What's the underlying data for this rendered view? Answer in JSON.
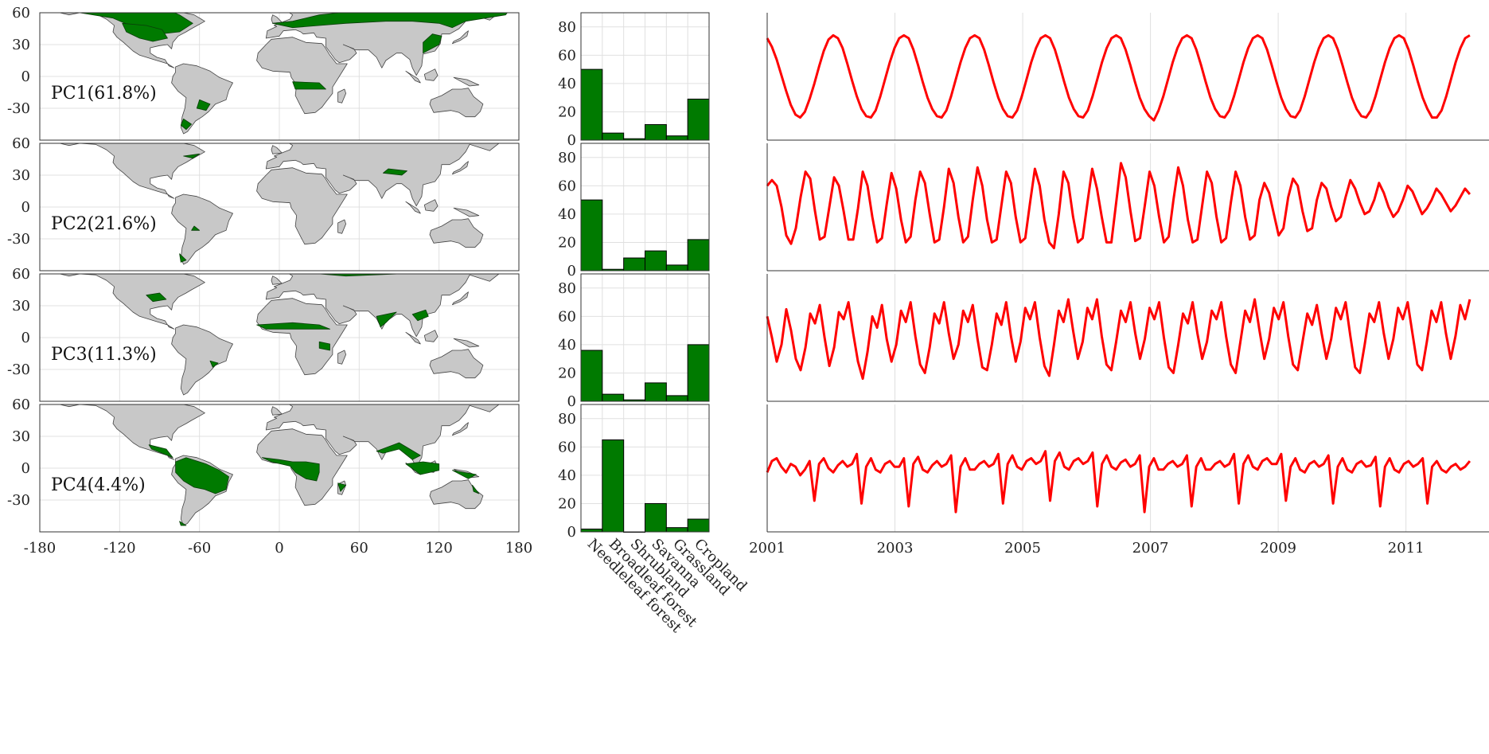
{
  "figure": {
    "map_panels": {
      "lon_ticks": [
        "-180",
        "-120",
        "-60",
        "0",
        "60",
        "120",
        "180"
      ],
      "lat_ticks": [
        "60",
        "30",
        "0",
        "-30"
      ],
      "xlim": [
        -180,
        180
      ],
      "ylim": [
        -60,
        60
      ],
      "land_color": "#c8c8c8",
      "highlight_color": "#007a00",
      "panels": [
        {
          "label": "PC1(61.8%)"
        },
        {
          "label": "PC2(21.6%)"
        },
        {
          "label": "PC3(11.3%)"
        },
        {
          "label": "PC4(4.4%)"
        }
      ]
    },
    "bar_x_tick_labels": [
      "Needleleaf forest",
      "Broadleaf forest",
      "Shrubland",
      "Savanna",
      "Grassland",
      "Cropland"
    ],
    "time_x_tick_labels": [
      "2001",
      "2003",
      "2005",
      "2007",
      "2009",
      "2011"
    ]
  },
  "chart_data": [
    {
      "type": "bar",
      "categories": [
        "Needleleaf forest",
        "Broadleaf forest",
        "Shrubland",
        "Savanna",
        "Grassland",
        "Cropland"
      ],
      "values": [
        50,
        5,
        1,
        11,
        3,
        29
      ],
      "ylim": [
        0,
        90
      ],
      "yticks": [
        0,
        20,
        40,
        60,
        80
      ],
      "color": "#007a00"
    },
    {
      "type": "bar",
      "categories": [
        "Needleleaf forest",
        "Broadleaf forest",
        "Shrubland",
        "Savanna",
        "Grassland",
        "Cropland"
      ],
      "values": [
        50,
        1,
        9,
        14,
        4,
        22
      ],
      "ylim": [
        0,
        90
      ],
      "yticks": [
        0,
        20,
        40,
        60,
        80
      ],
      "color": "#007a00"
    },
    {
      "type": "bar",
      "categories": [
        "Needleleaf forest",
        "Broadleaf forest",
        "Shrubland",
        "Savanna",
        "Grassland",
        "Cropland"
      ],
      "values": [
        36,
        5,
        1,
        13,
        4,
        40
      ],
      "ylim": [
        0,
        90
      ],
      "yticks": [
        0,
        20,
        40,
        60,
        80
      ],
      "color": "#007a00"
    },
    {
      "type": "bar",
      "categories": [
        "Needleleaf forest",
        "Broadleaf forest",
        "Shrubland",
        "Savanna",
        "Grassland",
        "Cropland"
      ],
      "values": [
        2,
        65,
        0,
        20,
        3,
        9
      ],
      "ylim": [
        0,
        90
      ],
      "yticks": [
        0,
        20,
        40,
        60,
        80
      ],
      "color": "#007a00"
    },
    {
      "type": "line",
      "x_start": 2001.0,
      "x_end": 2012.0,
      "xlim": [
        2001,
        2012.3
      ],
      "x_ticks": [
        2001,
        2003,
        2005,
        2007,
        2009,
        2011
      ],
      "color": "#ff0000",
      "y": [
        72,
        66,
        57,
        46,
        35,
        25,
        18,
        16,
        20,
        29,
        40,
        52,
        63,
        71,
        74,
        72,
        65,
        54,
        42,
        31,
        22,
        17,
        16,
        21,
        31,
        43,
        55,
        65,
        72,
        74,
        72,
        64,
        53,
        41,
        30,
        22,
        17,
        16,
        21,
        31,
        43,
        55,
        65,
        72,
        74,
        72,
        64,
        53,
        41,
        30,
        22,
        17,
        16,
        21,
        31,
        43,
        55,
        65,
        72,
        74,
        72,
        64,
        53,
        41,
        30,
        22,
        17,
        16,
        21,
        31,
        43,
        55,
        65,
        72,
        74,
        72,
        64,
        53,
        41,
        30,
        22,
        17,
        14,
        21,
        31,
        43,
        55,
        65,
        72,
        74,
        72,
        64,
        53,
        41,
        30,
        22,
        17,
        16,
        21,
        31,
        43,
        55,
        65,
        72,
        74,
        72,
        64,
        53,
        41,
        30,
        22,
        17,
        16,
        21,
        31,
        43,
        55,
        65,
        72,
        74,
        72,
        64,
        53,
        41,
        30,
        22,
        17,
        16,
        21,
        31,
        43,
        55,
        65,
        72,
        74,
        72,
        64,
        53,
        41,
        30,
        22,
        16,
        16,
        21,
        31,
        43,
        55,
        65,
        72,
        74
      ]
    },
    {
      "type": "line",
      "x_start": 2001.0,
      "x_end": 2012.0,
      "xlim": [
        2001,
        2012.3
      ],
      "x_ticks": [
        2001,
        2003,
        2005,
        2007,
        2009,
        2011
      ],
      "color": "#ff0000",
      "y": [
        60,
        64,
        60,
        45,
        25,
        19,
        30,
        52,
        70,
        65,
        42,
        22,
        24,
        45,
        66,
        60,
        42,
        22,
        22,
        44,
        70,
        60,
        38,
        20,
        23,
        47,
        69,
        58,
        36,
        20,
        24,
        50,
        70,
        62,
        40,
        20,
        22,
        45,
        72,
        62,
        38,
        20,
        24,
        50,
        73,
        60,
        36,
        20,
        22,
        46,
        70,
        62,
        38,
        20,
        23,
        48,
        72,
        60,
        36,
        20,
        16,
        40,
        70,
        62,
        38,
        20,
        23,
        48,
        72,
        58,
        38,
        20,
        20,
        48,
        76,
        66,
        42,
        21,
        23,
        46,
        70,
        60,
        38,
        20,
        24,
        50,
        73,
        60,
        36,
        20,
        22,
        46,
        70,
        62,
        38,
        20,
        23,
        48,
        70,
        60,
        38,
        22,
        25,
        50,
        62,
        55,
        40,
        25,
        30,
        52,
        65,
        60,
        42,
        28,
        30,
        50,
        62,
        58,
        45,
        35,
        38,
        52,
        64,
        58,
        48,
        40,
        42,
        50,
        62,
        55,
        45,
        38,
        42,
        50,
        60,
        56,
        48,
        40,
        44,
        50,
        58,
        54,
        48,
        42,
        46,
        52,
        58,
        54
      ]
    },
    {
      "type": "line",
      "x_start": 2001.0,
      "x_end": 2012.0,
      "xlim": [
        2001,
        2012.3
      ],
      "x_ticks": [
        2001,
        2003,
        2005,
        2007,
        2009,
        2011
      ],
      "color": "#ff0000",
      "y": [
        60,
        45,
        28,
        40,
        65,
        50,
        30,
        22,
        38,
        62,
        55,
        68,
        45,
        25,
        38,
        63,
        58,
        70,
        48,
        28,
        16,
        35,
        60,
        52,
        68,
        44,
        28,
        40,
        64,
        56,
        70,
        46,
        26,
        20,
        38,
        62,
        55,
        70,
        48,
        30,
        40,
        64,
        56,
        68,
        44,
        24,
        22,
        40,
        62,
        54,
        70,
        46,
        28,
        42,
        66,
        58,
        70,
        45,
        25,
        18,
        40,
        64,
        56,
        72,
        50,
        30,
        42,
        66,
        58,
        72,
        46,
        26,
        22,
        42,
        64,
        56,
        70,
        48,
        30,
        44,
        66,
        58,
        70,
        45,
        24,
        20,
        40,
        62,
        55,
        70,
        48,
        30,
        42,
        64,
        58,
        70,
        46,
        26,
        20,
        42,
        64,
        56,
        72,
        50,
        30,
        44,
        66,
        58,
        70,
        46,
        26,
        22,
        42,
        62,
        54,
        68,
        48,
        30,
        44,
        66,
        58,
        70,
        46,
        24,
        20,
        40,
        62,
        56,
        70,
        48,
        30,
        44,
        66,
        58,
        70,
        48,
        26,
        22,
        42,
        64,
        56,
        70,
        48,
        30,
        46,
        68,
        58,
        72
      ]
    },
    {
      "type": "line",
      "x_start": 2001.0,
      "x_end": 2012.0,
      "xlim": [
        2001,
        2012.3
      ],
      "x_ticks": [
        2001,
        2003,
        2005,
        2007,
        2009,
        2011
      ],
      "color": "#ff0000",
      "y": [
        42,
        50,
        52,
        46,
        42,
        48,
        46,
        40,
        44,
        50,
        22,
        48,
        52,
        45,
        42,
        47,
        50,
        46,
        48,
        55,
        20,
        46,
        52,
        44,
        42,
        48,
        50,
        46,
        46,
        52,
        18,
        48,
        53,
        44,
        42,
        47,
        50,
        46,
        48,
        54,
        14,
        46,
        52,
        44,
        44,
        48,
        50,
        46,
        48,
        55,
        20,
        48,
        54,
        46,
        44,
        50,
        52,
        48,
        50,
        57,
        22,
        50,
        56,
        46,
        44,
        50,
        52,
        48,
        50,
        56,
        18,
        48,
        54,
        46,
        44,
        49,
        51,
        46,
        48,
        54,
        14,
        46,
        52,
        44,
        44,
        48,
        50,
        46,
        48,
        54,
        18,
        46,
        52,
        44,
        44,
        48,
        50,
        46,
        48,
        55,
        20,
        48,
        54,
        46,
        44,
        50,
        52,
        48,
        48,
        55,
        22,
        46,
        52,
        44,
        42,
        48,
        50,
        46,
        48,
        54,
        20,
        46,
        52,
        44,
        42,
        48,
        50,
        46,
        47,
        53,
        18,
        46,
        52,
        44,
        42,
        48,
        50,
        46,
        48,
        52,
        20,
        46,
        50,
        44,
        42,
        46,
        48,
        44,
        46,
        50
      ]
    }
  ]
}
